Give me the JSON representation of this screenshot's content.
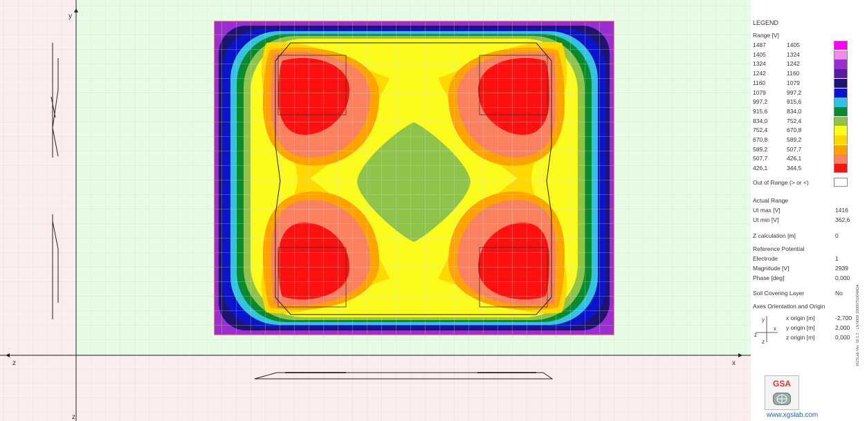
{
  "view": {
    "axis_labels": {
      "y": "y",
      "z_left": "z",
      "x_right": "x",
      "z_bottom": "z"
    }
  },
  "legend": {
    "title": "LEGEND",
    "range_header": "Range [V]",
    "rows": [
      {
        "hi": "1487",
        "lo": "1405",
        "color": "#ff00ff"
      },
      {
        "hi": "1405",
        "lo": "1324",
        "color": "#f08ce6"
      },
      {
        "hi": "1324",
        "lo": "1242",
        "color": "#9b2ed0"
      },
      {
        "hi": "1242",
        "lo": "1160",
        "color": "#5a1a9e"
      },
      {
        "hi": "1160",
        "lo": "1079",
        "color": "#1e1470"
      },
      {
        "hi": "1079",
        "lo": "997,2",
        "color": "#0b14c8"
      },
      {
        "hi": "997,2",
        "lo": "915,6",
        "color": "#33c2e0"
      },
      {
        "hi": "915,6",
        "lo": "834,0",
        "color": "#0a8a2e"
      },
      {
        "hi": "834,0",
        "lo": "752,4",
        "color": "#8fc34a"
      },
      {
        "hi": "752,4",
        "lo": "670,8",
        "color": "#fbfb1e"
      },
      {
        "hi": "670,8",
        "lo": "589,2",
        "color": "#ffd800"
      },
      {
        "hi": "589,2",
        "lo": "507,7",
        "color": "#ffa300"
      },
      {
        "hi": "507,7",
        "lo": "426,1",
        "color": "#fb8060"
      },
      {
        "hi": "426,1",
        "lo": "344,5",
        "color": "#ff1010"
      }
    ],
    "out_of_range": {
      "label": "Out of Range (> or <)",
      "color": "#ffffff"
    },
    "actual_range": {
      "title": "Actual Range",
      "ut_max_label": "Ut max [V]",
      "ut_max": "1416",
      "ut_min_label": "Ut min [V]",
      "ut_min": "362,6"
    },
    "z_calc": {
      "label": "Z calculation [m]",
      "value": "0"
    },
    "reference": {
      "title": "Reference Potential",
      "electrode_label": "Electrode",
      "electrode": "1",
      "magnitude_label": "Magnitude [V]",
      "magnitude": "2939",
      "phase_label": "Phase [deg]",
      "phase": "0,000"
    },
    "soil": {
      "label": "Soil Covering Layer",
      "value": "No"
    },
    "axes": {
      "title": "Axes Orientation and Origin",
      "x_label": "x origin [m]",
      "x": "-2,700",
      "y_label": "y origin [m]",
      "y": "2,000",
      "z_label": "z origin [m]",
      "z": "0,000",
      "glyph_y": "y",
      "glyph_x": "x",
      "glyph_z": "z",
      "glyph_z2": "z"
    },
    "brand": "GSA",
    "website": "www.xgslab.com",
    "version_text": "XGSLab Ver. 16.1.1 - LN 0009 1906075D04ADA"
  },
  "colors": {
    "top_view_bg": "#e8fbe6",
    "side_view_bg": "#fbeeee",
    "grid_top": "#cfe3cf",
    "grid_side": "#ecd6d6",
    "plot_border": "#e03a6a"
  }
}
